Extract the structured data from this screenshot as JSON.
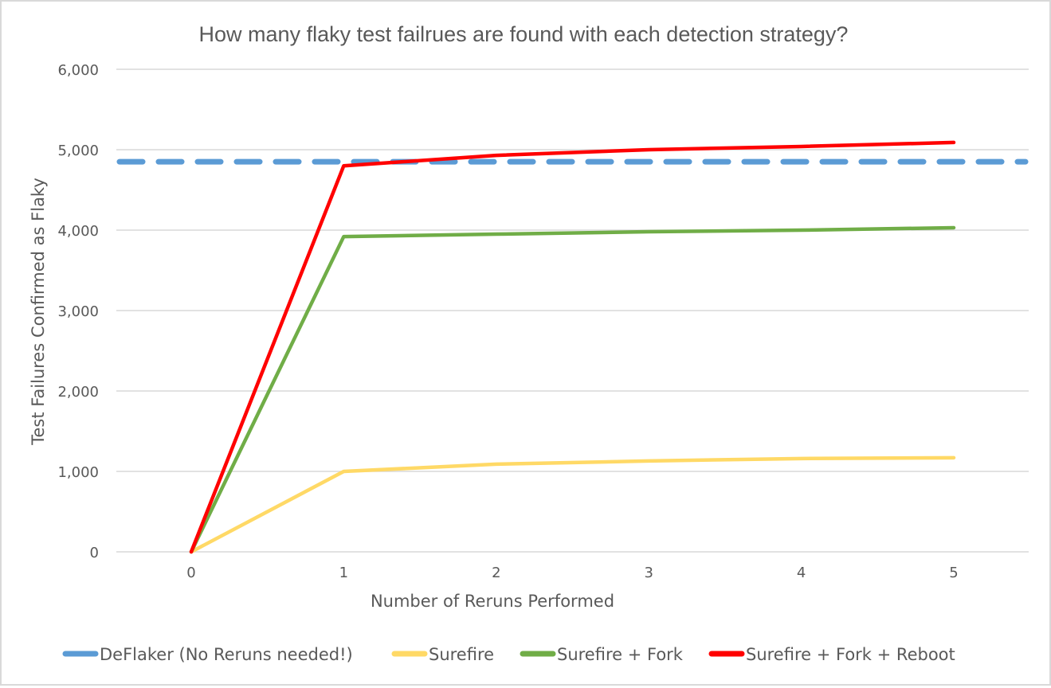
{
  "chart_data": {
    "type": "line",
    "title": "How many flaky test failrues are found with each detection strategy?",
    "xlabel": "Number of Reruns Performed",
    "ylabel": "Test Failures Confirmed as Flaky",
    "x": [
      0,
      1,
      2,
      3,
      4,
      5
    ],
    "x_tick_labels": [
      "0",
      "1",
      "2",
      "3",
      "4",
      "5"
    ],
    "y_tick_labels": [
      "0",
      "1,000",
      "2,000",
      "3,000",
      "4,000",
      "5,000",
      "6,000"
    ],
    "ylim": [
      0,
      6000
    ],
    "grid": true,
    "legend_position": "bottom",
    "series": [
      {
        "name": "DeFlaker (No Reruns needed!)",
        "color": "#5b9bd5",
        "style": "dashed",
        "values": [
          4850,
          4850,
          4850,
          4850,
          4850,
          4850
        ]
      },
      {
        "name": "Surefire",
        "color": "#ffd966",
        "style": "solid",
        "values": [
          0,
          1000,
          1090,
          1130,
          1160,
          1170
        ]
      },
      {
        "name": "Surefire + Fork",
        "color": "#70ad47",
        "style": "solid",
        "values": [
          0,
          3920,
          3950,
          3980,
          4000,
          4030
        ]
      },
      {
        "name": "Surefire + Fork + Reboot",
        "color": "#ff0000",
        "style": "solid",
        "values": [
          0,
          4800,
          4930,
          5000,
          5040,
          5090
        ]
      }
    ]
  }
}
